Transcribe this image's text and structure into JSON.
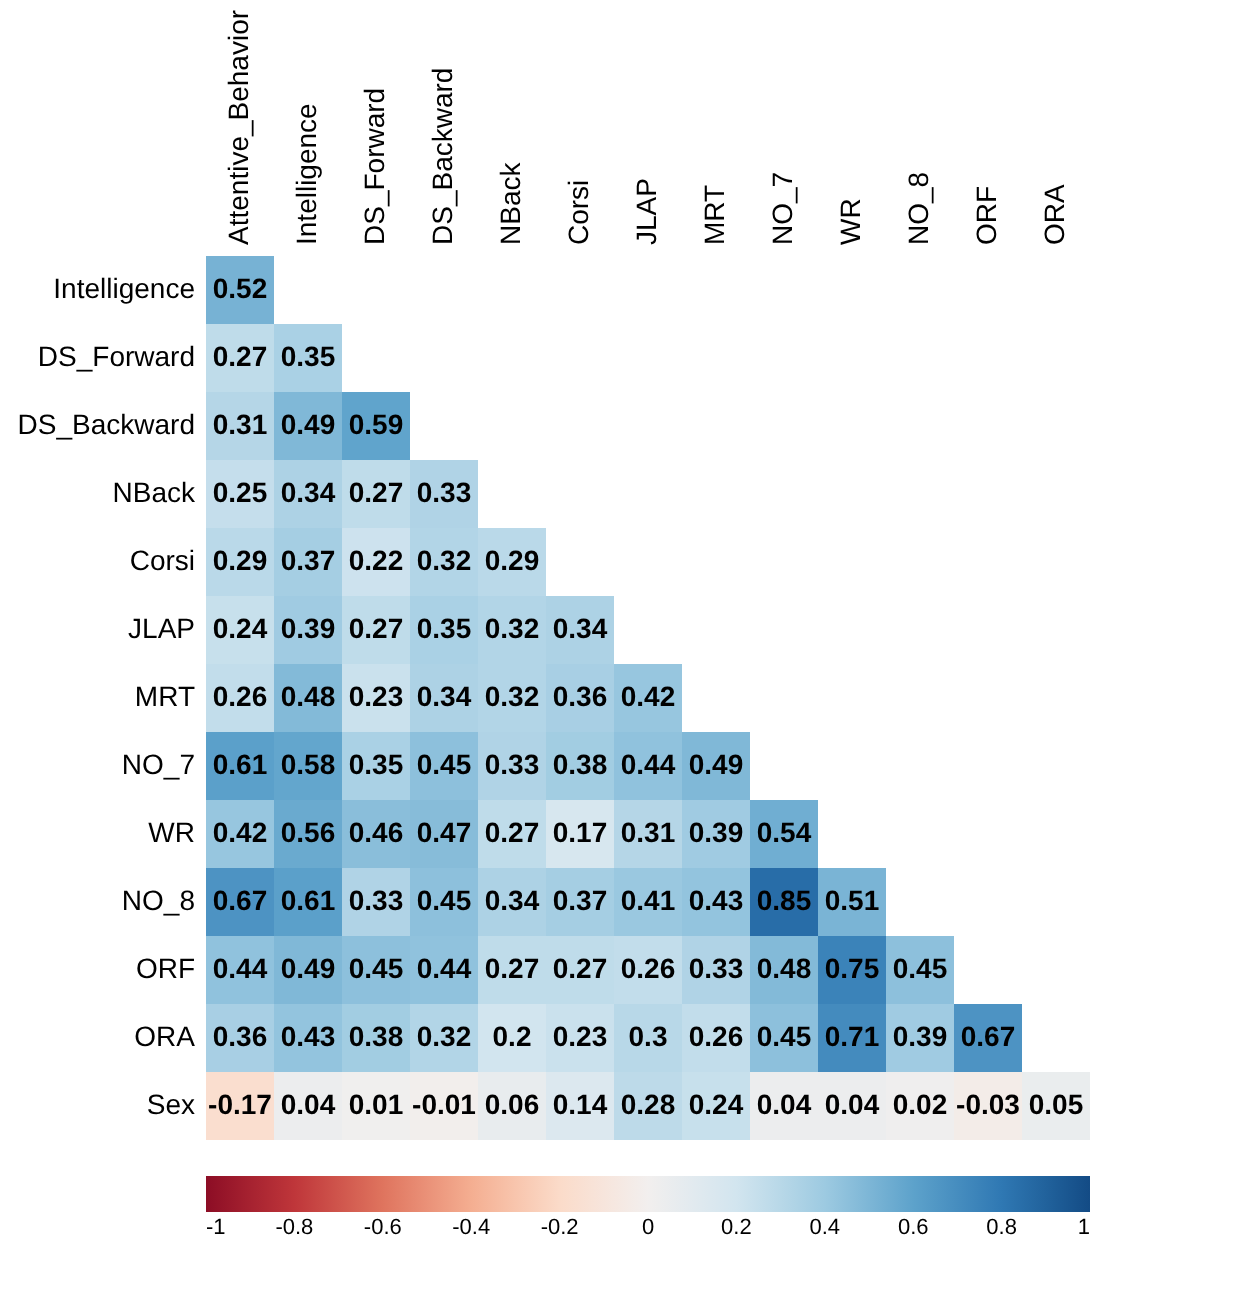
{
  "chart_data": {
    "type": "heatmap",
    "categories": [
      "Attentive_Behavior",
      "Intelligence",
      "DS_Forward",
      "DS_Backward",
      "NBack",
      "Corsi",
      "JLAP",
      "MRT",
      "NO_7",
      "WR",
      "NO_8",
      "ORF",
      "ORA"
    ],
    "y_categories": [
      "Intelligence",
      "DS_Forward",
      "DS_Backward",
      "NBack",
      "Corsi",
      "JLAP",
      "MRT",
      "NO_7",
      "WR",
      "NO_8",
      "ORF",
      "ORA",
      "Sex"
    ],
    "cells": [
      [
        0.52,
        null,
        null,
        null,
        null,
        null,
        null,
        null,
        null,
        null,
        null,
        null,
        null
      ],
      [
        0.27,
        0.35,
        null,
        null,
        null,
        null,
        null,
        null,
        null,
        null,
        null,
        null,
        null
      ],
      [
        0.31,
        0.49,
        0.59,
        null,
        null,
        null,
        null,
        null,
        null,
        null,
        null,
        null,
        null
      ],
      [
        0.25,
        0.34,
        0.27,
        0.33,
        null,
        null,
        null,
        null,
        null,
        null,
        null,
        null,
        null
      ],
      [
        0.29,
        0.37,
        0.22,
        0.32,
        0.29,
        null,
        null,
        null,
        null,
        null,
        null,
        null,
        null
      ],
      [
        0.24,
        0.39,
        0.27,
        0.35,
        0.32,
        0.34,
        null,
        null,
        null,
        null,
        null,
        null,
        null
      ],
      [
        0.26,
        0.48,
        0.23,
        0.34,
        0.32,
        0.36,
        0.42,
        null,
        null,
        null,
        null,
        null,
        null
      ],
      [
        0.61,
        0.58,
        0.35,
        0.45,
        0.33,
        0.38,
        0.44,
        0.49,
        null,
        null,
        null,
        null,
        null
      ],
      [
        0.42,
        0.56,
        0.46,
        0.47,
        0.27,
        0.17,
        0.31,
        0.39,
        0.54,
        null,
        null,
        null,
        null
      ],
      [
        0.67,
        0.61,
        0.33,
        0.45,
        0.34,
        0.37,
        0.41,
        0.43,
        0.85,
        0.51,
        null,
        null,
        null
      ],
      [
        0.44,
        0.49,
        0.45,
        0.44,
        0.27,
        0.27,
        0.26,
        0.33,
        0.48,
        0.75,
        0.45,
        null,
        null
      ],
      [
        0.36,
        0.43,
        0.38,
        0.32,
        0.2,
        0.23,
        0.3,
        0.26,
        0.45,
        0.71,
        0.39,
        0.67,
        null
      ],
      [
        -0.17,
        0.04,
        0.01,
        -0.01,
        0.06,
        0.14,
        0.28,
        0.24,
        0.04,
        0.04,
        0.02,
        -0.03,
        0.05
      ]
    ],
    "clim": [
      -1,
      1
    ],
    "cticks": [
      -1,
      -0.8,
      -0.6,
      -0.4,
      -0.2,
      0,
      0.2,
      0.4,
      0.6,
      0.8,
      1
    ],
    "data_labels": true
  }
}
